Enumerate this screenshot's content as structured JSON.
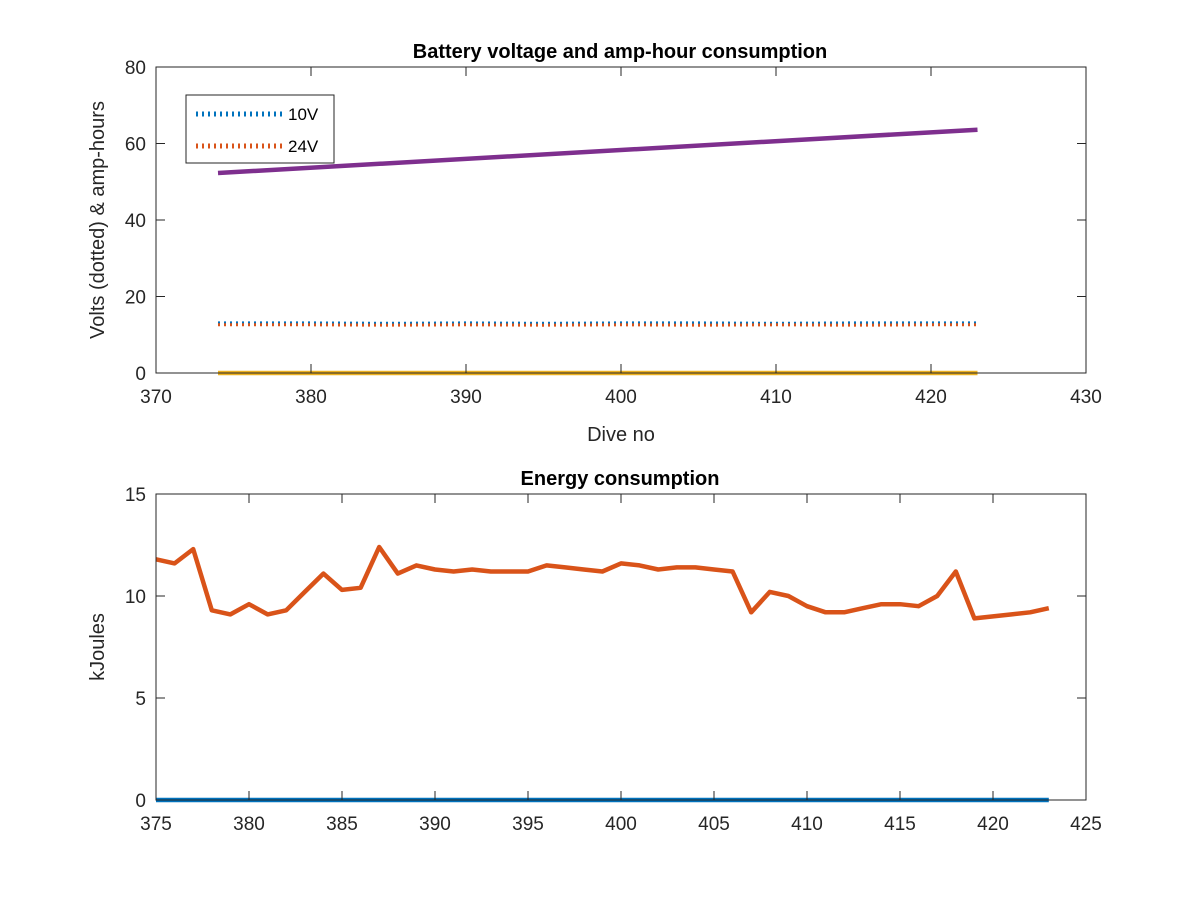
{
  "chart_data": [
    {
      "type": "line",
      "title": "Battery voltage and amp-hour consumption",
      "xlabel": "Dive no",
      "ylabel": "Volts (dotted) & amp-hours",
      "xlim": [
        370,
        430
      ],
      "ylim": [
        0,
        80
      ],
      "xticks": [
        370,
        380,
        390,
        400,
        410,
        420,
        430
      ],
      "yticks": [
        0,
        20,
        40,
        60,
        80
      ],
      "grid": false,
      "legend_position": "top-left",
      "series": [
        {
          "name": "10V",
          "style": "dotted",
          "color": "#0072BD",
          "x": [
            374,
            380,
            385,
            390,
            395,
            400,
            405,
            410,
            415,
            420,
            423
          ],
          "y": [
            13.1,
            13.1,
            13.0,
            13.1,
            13.0,
            13.1,
            13.1,
            13.0,
            13.1,
            13.1,
            13.1
          ]
        },
        {
          "name": "24V",
          "style": "dotted",
          "color": "#D95319",
          "x": [
            374,
            380,
            385,
            390,
            395,
            400,
            405,
            410,
            415,
            420,
            423
          ],
          "y": [
            12.6,
            12.6,
            12.5,
            12.6,
            12.5,
            12.6,
            12.5,
            12.6,
            12.5,
            12.6,
            12.6
          ]
        },
        {
          "style": "solid",
          "color": "#7E2F8E",
          "x": [
            374,
            423
          ],
          "y": [
            52.3,
            63.6
          ]
        },
        {
          "style": "solid",
          "color": "#EDB120",
          "x": [
            374,
            423
          ],
          "y": [
            0,
            0
          ]
        }
      ]
    },
    {
      "type": "line",
      "title": "Energy consumption",
      "xlabel": "",
      "ylabel": "kJoules",
      "xlim": [
        375,
        425
      ],
      "ylim": [
        0,
        15
      ],
      "xticks": [
        375,
        380,
        385,
        390,
        395,
        400,
        405,
        410,
        415,
        420,
        425
      ],
      "yticks": [
        0,
        5,
        10,
        15
      ],
      "grid": false,
      "series": [
        {
          "style": "solid",
          "color": "#0072BD",
          "x": [
            375,
            423
          ],
          "y": [
            0,
            0
          ]
        },
        {
          "style": "solid",
          "color": "#D95319",
          "x": [
            375,
            376,
            377,
            378,
            379,
            380,
            381,
            382,
            383,
            384,
            385,
            386,
            387,
            388,
            389,
            390,
            391,
            392,
            393,
            394,
            395,
            396,
            397,
            398,
            399,
            400,
            401,
            402,
            403,
            404,
            405,
            406,
            407,
            408,
            409,
            410,
            411,
            412,
            413,
            414,
            415,
            416,
            417,
            418,
            419,
            420,
            421,
            422,
            423
          ],
          "y": [
            11.8,
            11.6,
            12.3,
            9.3,
            9.1,
            9.6,
            9.1,
            9.3,
            10.2,
            11.1,
            10.3,
            10.4,
            12.4,
            11.1,
            11.5,
            11.3,
            11.2,
            11.3,
            11.2,
            11.2,
            11.2,
            11.5,
            11.4,
            11.3,
            11.2,
            11.6,
            11.5,
            11.3,
            11.4,
            11.4,
            11.3,
            11.2,
            9.2,
            10.2,
            10.0,
            9.5,
            9.2,
            9.2,
            9.4,
            9.6,
            9.6,
            9.5,
            10.0,
            11.2,
            8.9,
            9.0,
            9.1,
            9.2,
            9.4
          ]
        }
      ]
    }
  ]
}
